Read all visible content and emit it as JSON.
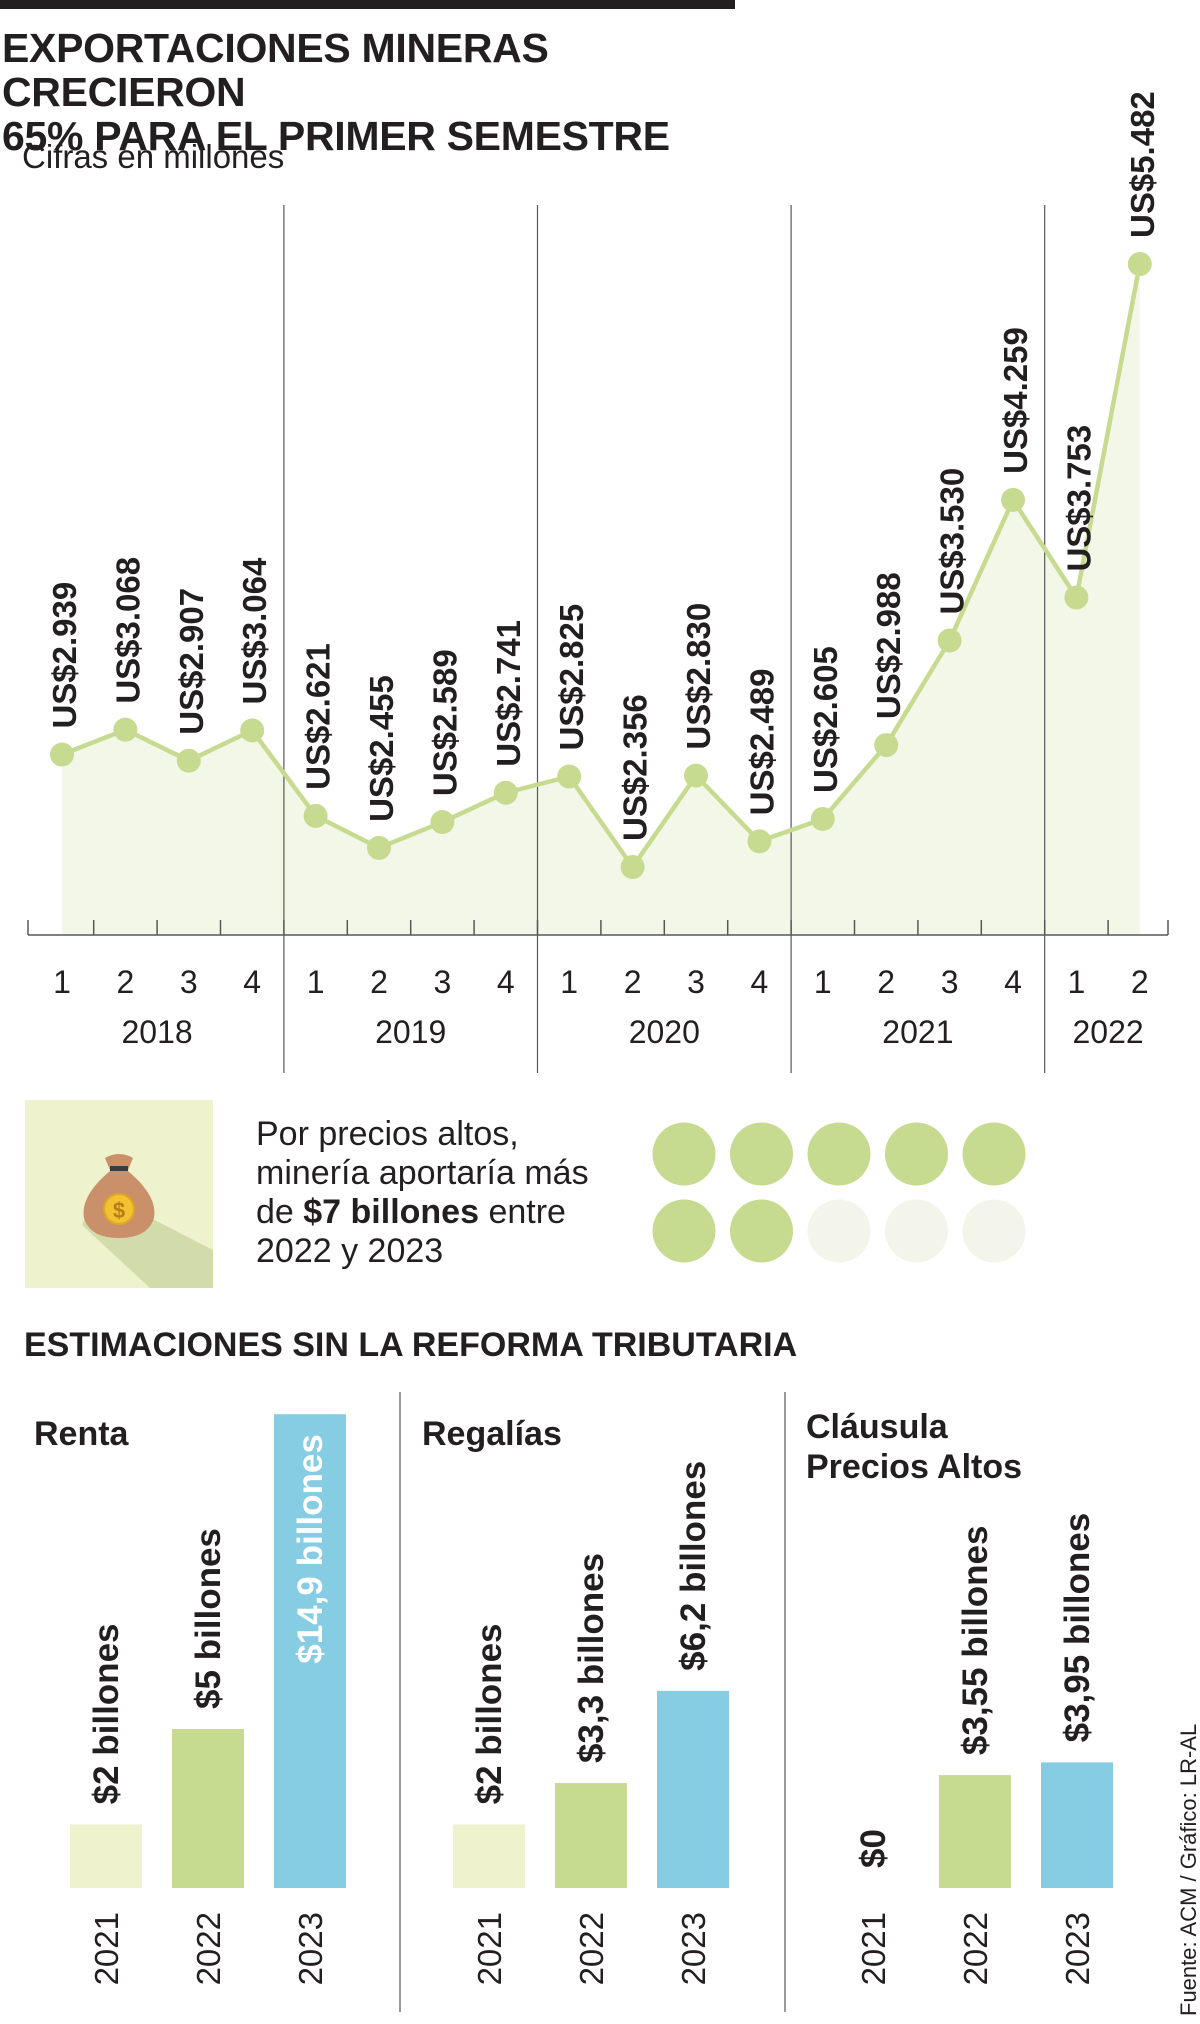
{
  "title_lines": [
    "EXPORTACIONES MINERAS CRECIERON",
    "65% PARA EL PRIMER SEMESTRE"
  ],
  "subtitle": "Cifras en millones",
  "colors": {
    "line": "#c6db8f",
    "area": "#f3f7e8",
    "light": "#eef2cd",
    "green": "#c6db8f",
    "blue": "#86cde3",
    "ink": "#231f20",
    "axis": "#55585a",
    "dot_empty": "#f3f5ea"
  },
  "chart_data": [
    {
      "type": "line",
      "title": "EXPORTACIONES MINERAS CRECIERON 65% PARA EL PRIMER SEMESTRE",
      "subtitle": "Cifras en millones",
      "years": [
        "2018",
        "2019",
        "2020",
        "2021",
        "2022"
      ],
      "x": [
        "1",
        "2",
        "3",
        "4",
        "1",
        "2",
        "3",
        "4",
        "1",
        "2",
        "3",
        "4",
        "1",
        "2",
        "3",
        "4",
        "1",
        "2"
      ],
      "year_of_point": [
        "2018",
        "2018",
        "2018",
        "2018",
        "2019",
        "2019",
        "2019",
        "2019",
        "2020",
        "2020",
        "2020",
        "2020",
        "2021",
        "2021",
        "2021",
        "2021",
        "2022",
        "2022"
      ],
      "series": [
        {
          "values": [
            2939,
            3068,
            2907,
            3064,
            2621,
            2455,
            2589,
            2741,
            2825,
            2356,
            2830,
            2489,
            2605,
            2988,
            3530,
            4259,
            3753,
            5482
          ]
        }
      ],
      "labels": [
        "US$2.939",
        "US$3.068",
        "US$2.907",
        "US$3.064",
        "US$2.621",
        "US$2.455",
        "US$2.589",
        "US$2.741",
        "US$2.825",
        "US$2.356",
        "US$2.830",
        "US$2.489",
        "US$2.605",
        "US$2.988",
        "US$3.530",
        "US$4.259",
        "US$3.753",
        "US$5.482"
      ],
      "grid": false
    },
    {
      "type": "bar",
      "title": "ESTIMACIONES SIN LA REFORMA TRIBUTARIA",
      "groups": [
        {
          "name_lines": [
            "Renta"
          ],
          "categories": [
            "2021",
            "2022",
            "2023"
          ],
          "values": [
            2,
            5,
            14.9
          ],
          "labels": [
            "$2 billones",
            "$5 billones",
            "$14,9 billones"
          ]
        },
        {
          "name_lines": [
            "Regalías"
          ],
          "categories": [
            "2021",
            "2022",
            "2023"
          ],
          "values": [
            2,
            3.3,
            6.2
          ],
          "labels": [
            "$2 billones",
            "$3,3 billones",
            "$6,2 billones"
          ]
        },
        {
          "name_lines": [
            "Cláusula",
            "Precios Altos"
          ],
          "categories": [
            "2021",
            "2022",
            "2023"
          ],
          "values": [
            0,
            3.55,
            3.95
          ],
          "labels": [
            "$0",
            "$3,55 billones",
            "$3,95 billones"
          ]
        }
      ],
      "unit": "billones"
    }
  ],
  "callout": {
    "text_lines": [
      {
        "normal": "Por precios altos,"
      },
      {
        "normal": "minería aportaría más"
      },
      {
        "normal": "de ",
        "bold": "$7 billones",
        "after": " entre"
      },
      {
        "normal": "2022 y 2023"
      }
    ],
    "icon": "money-bag-icon",
    "icon_glyph": "$",
    "dots_filled": 7,
    "dots_total": 10
  },
  "source": "Fuente: ACM / Gráfico: LR-AL"
}
